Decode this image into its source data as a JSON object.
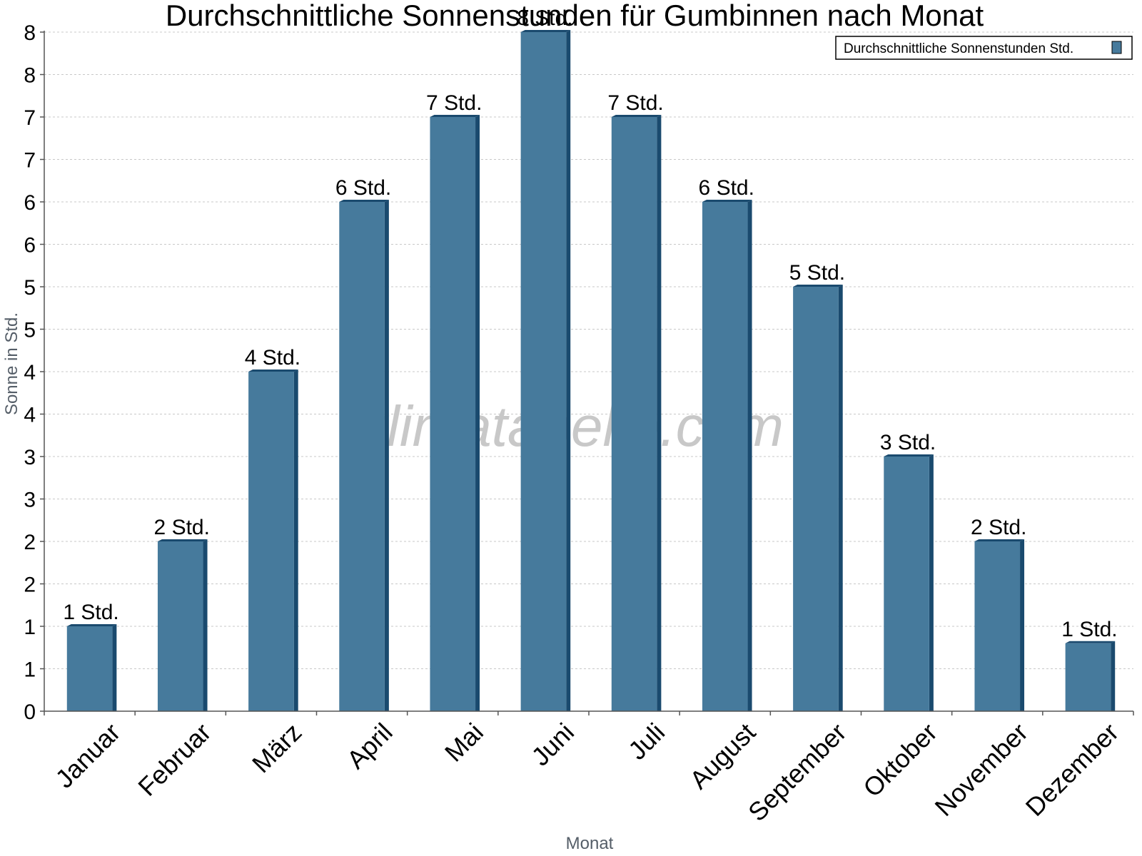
{
  "chart_data": {
    "type": "bar",
    "title": "Durchschnittliche Sonnenstunden für Gumbinnen nach Monat",
    "xlabel": "Monat",
    "ylabel": "Sonne in Std.",
    "ylim": [
      0,
      8
    ],
    "y_tick_values": [
      0,
      0.5,
      1,
      1.5,
      2,
      2.5,
      3,
      3.5,
      4,
      4.5,
      5,
      5.5,
      6,
      6.5,
      7,
      7.5,
      8
    ],
    "y_tick_labels": [
      "0",
      "1",
      "1",
      "2",
      "2",
      "3",
      "3",
      "4",
      "4",
      "5",
      "5",
      "6",
      "6",
      "7",
      "7",
      "8",
      "8"
    ],
    "grid": true,
    "legend_position": "top-right",
    "categories": [
      "Januar",
      "Februar",
      "März",
      "April",
      "Mai",
      "Juni",
      "Juli",
      "August",
      "September",
      "Oktober",
      "November",
      "Dezember"
    ],
    "series": [
      {
        "name": "Durchschnittliche Sonnenstunden Std.",
        "values": [
          1.0,
          2.0,
          4.0,
          6.0,
          7.0,
          8.0,
          7.0,
          6.0,
          5.0,
          3.0,
          2.0,
          0.8
        ],
        "data_labels": [
          "1 Std.",
          "2 Std.",
          "4 Std.",
          "6 Std.",
          "7 Std.",
          "8 Std.",
          "7 Std.",
          "6 Std.",
          "5 Std.",
          "3 Std.",
          "2 Std.",
          "1 Std."
        ],
        "color": "#467a9c",
        "edge_color": "#1a4a6e"
      }
    ],
    "watermark": "klimatabelle.com"
  }
}
